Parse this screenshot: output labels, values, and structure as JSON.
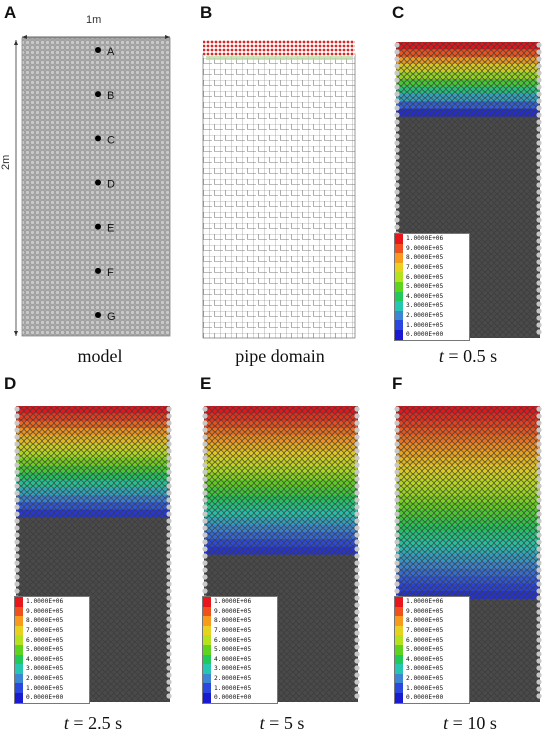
{
  "panels": [
    {
      "id": "A",
      "letter": "A",
      "caption_text": "model",
      "type": "model"
    },
    {
      "id": "B",
      "letter": "B",
      "caption_text": "pipe domain",
      "type": "pipe"
    },
    {
      "id": "C",
      "letter": "C",
      "caption_t": "t",
      "caption_rest": " = 0.5 s",
      "type": "pressure",
      "time_s": 0.5
    },
    {
      "id": "D",
      "letter": "D",
      "caption_t": "t",
      "caption_rest": " = 2.5 s",
      "type": "pressure",
      "time_s": 2.5
    },
    {
      "id": "E",
      "letter": "E",
      "caption_t": "t",
      "caption_rest": " = 5 s",
      "type": "pressure",
      "time_s": 5
    },
    {
      "id": "F",
      "letter": "F",
      "caption_t": "t",
      "caption_rest": " = 10 s",
      "type": "pressure",
      "time_s": 10
    }
  ],
  "model": {
    "width_label": "1m",
    "height_label": "2m",
    "points": [
      "A",
      "B",
      "C",
      "D",
      "E",
      "F",
      "G"
    ]
  },
  "legend": {
    "labels": [
      "1.0000E+06",
      "9.0000E+05",
      "8.0000E+05",
      "7.0000E+05",
      "6.0000E+05",
      "5.0000E+05",
      "4.0000E+05",
      "3.0000E+05",
      "2.0000E+05",
      "1.0000E+05",
      "0.0000E+00"
    ],
    "colors": [
      "#e8151b",
      "#f0501e",
      "#f79a1e",
      "#e9d21f",
      "#b4e21e",
      "#5fd41e",
      "#22c95a",
      "#27c6b2",
      "#3c86d6",
      "#2a47e0",
      "#1a1ad2"
    ]
  },
  "colors": {
    "particle_gray": "#b5b5b5",
    "network_dark": "#2a2a2a",
    "pipe_line": "#666666",
    "pipe_top_red": "#d42a2a"
  }
}
